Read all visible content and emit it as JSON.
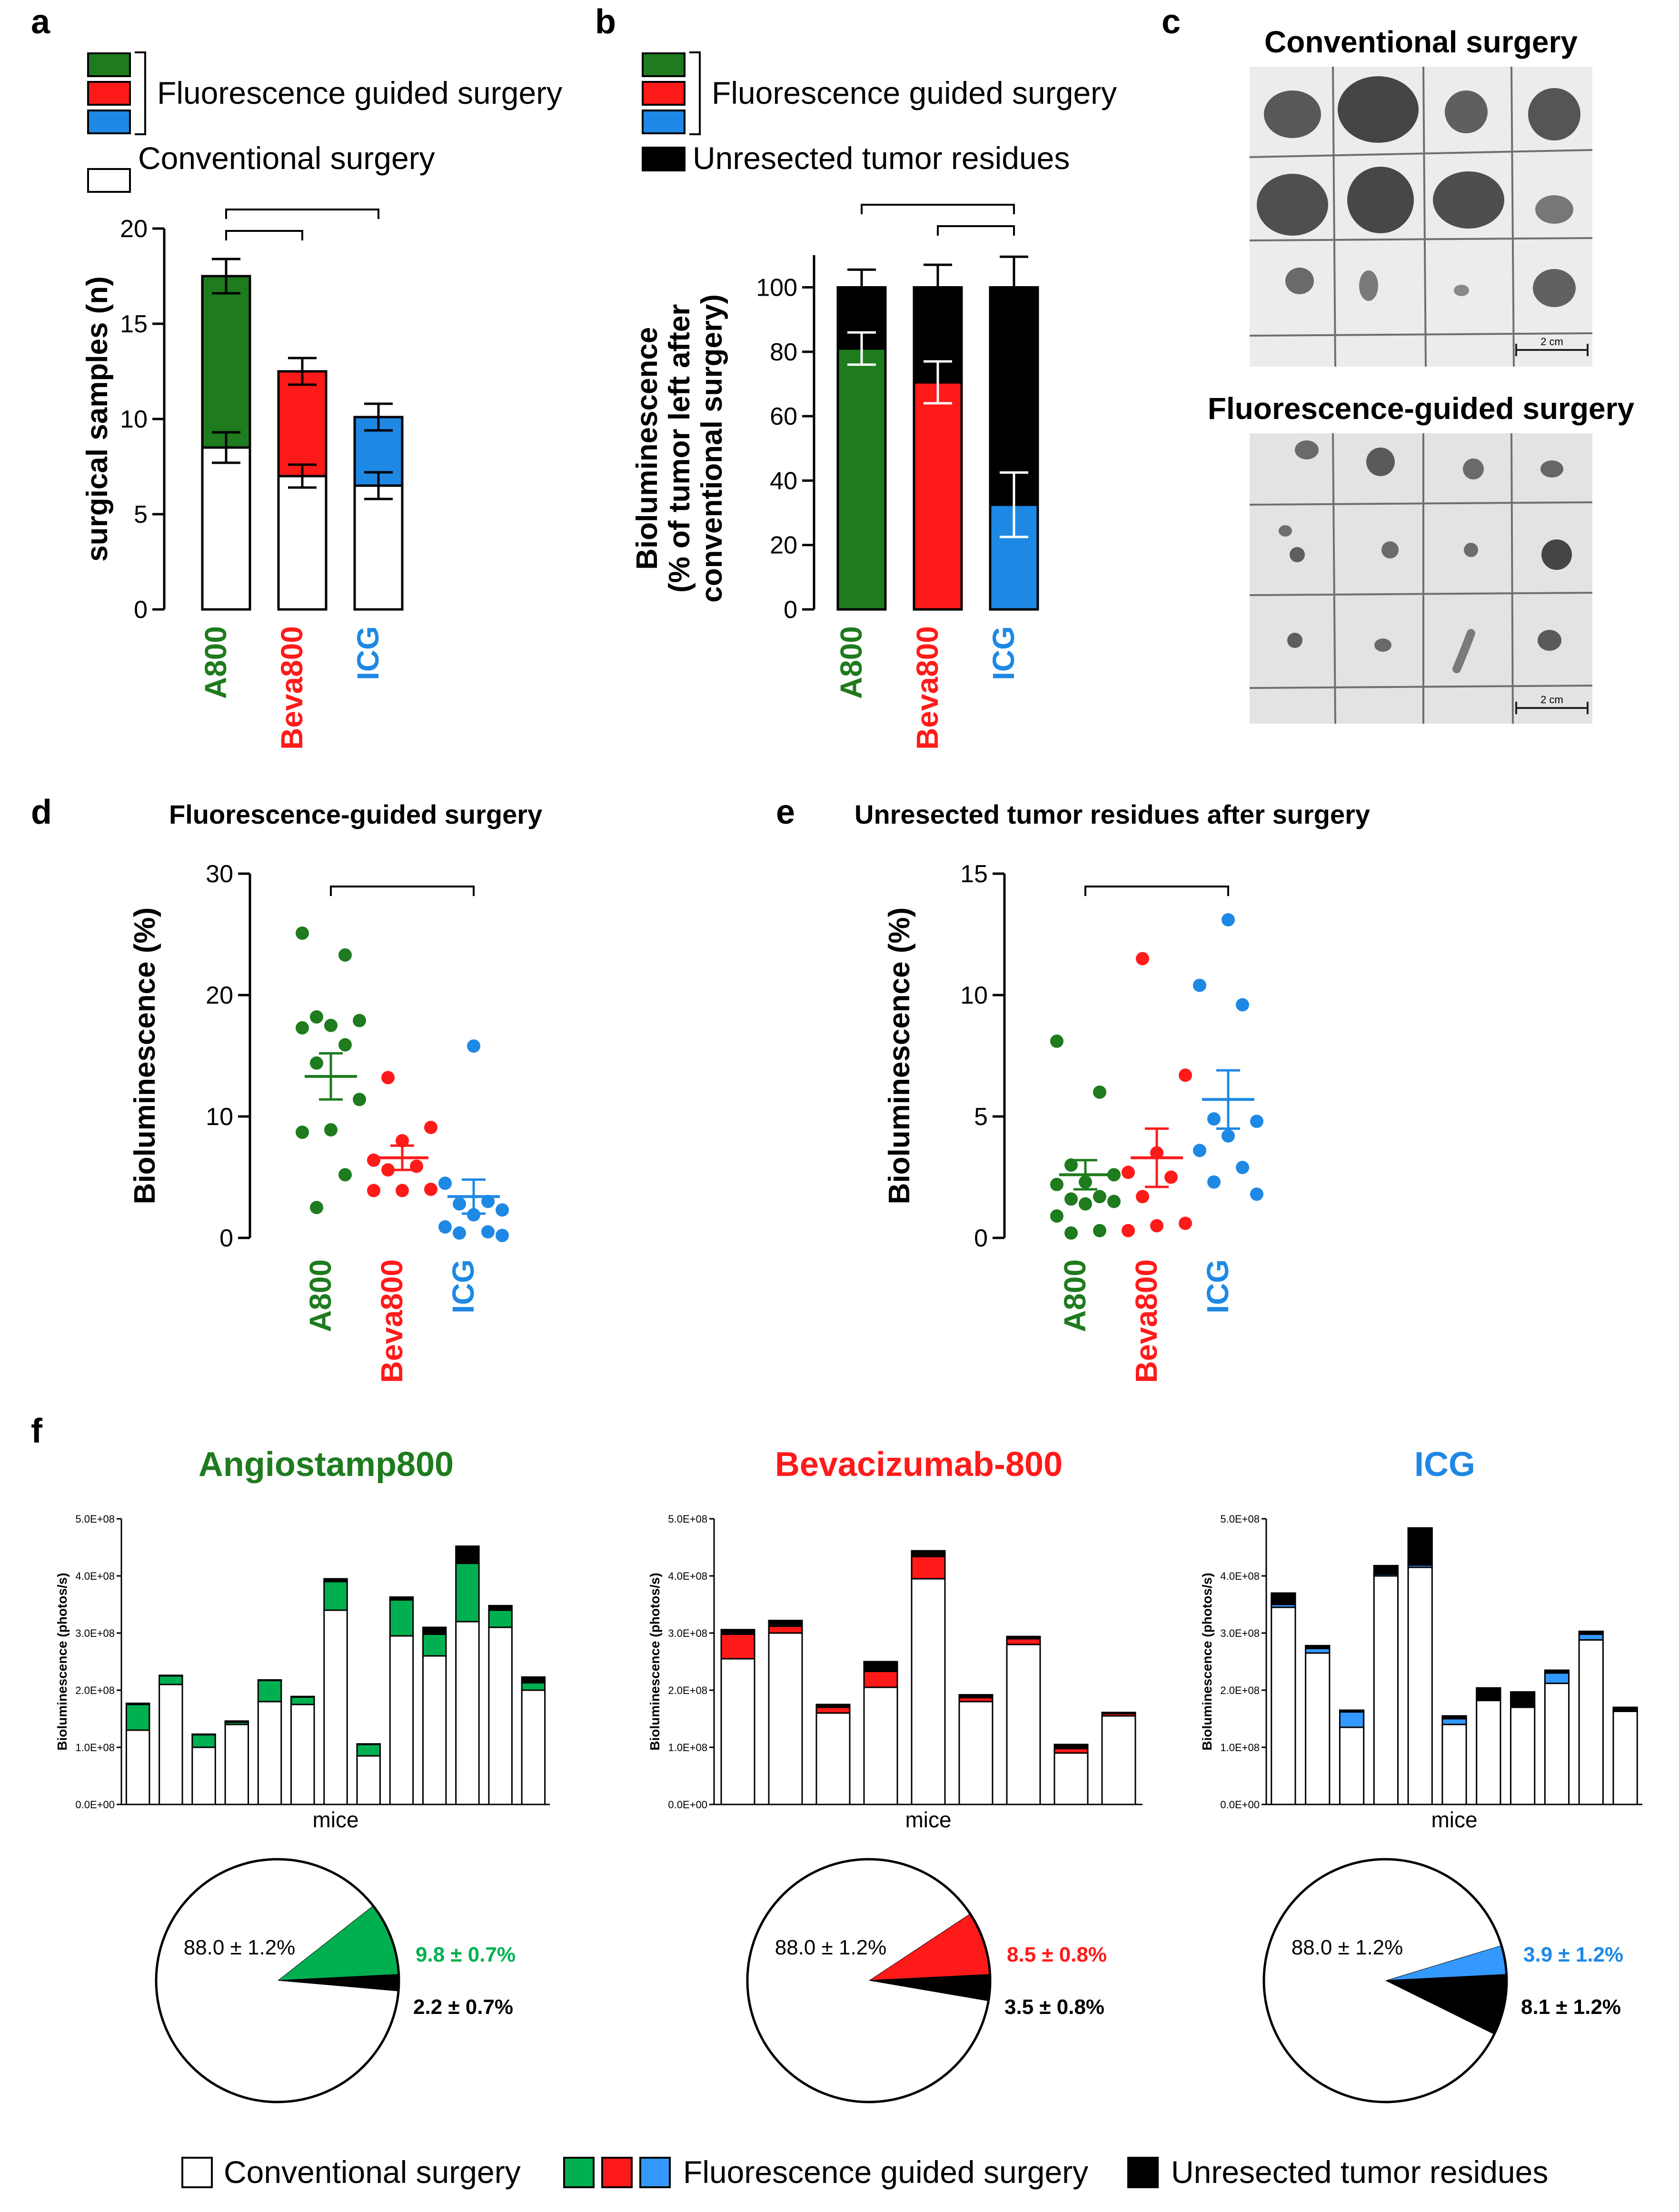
{
  "colors": {
    "a800": "#1e7b1e",
    "beva": "#ff1a1a",
    "icg": "#1e88e5",
    "black": "#000000",
    "white": "#ffffff",
    "pie_green": "#00b050",
    "pie_blue": "#3399ff",
    "pie_green_text": "#00b050",
    "pie_red_text": "#ff1a1a",
    "pie_blue_text": "#1e88e5"
  },
  "panel_letters": {
    "a": "a",
    "b": "b",
    "c": "c",
    "d": "d",
    "e": "e",
    "f": "f"
  },
  "chart_data": [
    {
      "id": "a",
      "type": "bar",
      "stacked": true,
      "legend": {
        "fgs": "Fluorescence guided surgery",
        "conv": "Conventional surgery"
      },
      "categories": [
        "A800",
        "Beva800",
        "ICG"
      ],
      "series": [
        {
          "name": "Conventional surgery",
          "values": [
            8.5,
            7.0,
            6.5
          ],
          "sem": [
            0.8,
            0.6,
            0.7
          ]
        },
        {
          "name": "Fluorescence guided surgery",
          "values": [
            9.0,
            5.5,
            3.6
          ],
          "sem": [
            0.9,
            0.7,
            0.7
          ]
        }
      ],
      "ylabel": "surgical samples (n)",
      "ylim": [
        0,
        20
      ],
      "yticks": [
        "0",
        "5",
        "10",
        "15",
        "20"
      ],
      "significance": [
        {
          "from": 0,
          "to": 1,
          "label": "**"
        },
        {
          "from": 0,
          "to": 2,
          "label": "***"
        }
      ]
    },
    {
      "id": "b",
      "type": "bar",
      "stacked": true,
      "legend": {
        "fgs": "Fluorescence guided surgery",
        "unres": "Unresected tumor residues"
      },
      "categories": [
        "A800",
        "Beva800",
        "ICG"
      ],
      "series": [
        {
          "name": "Fluorescence guided surgery",
          "values": [
            81,
            70.5,
            32.5
          ],
          "sem": [
            5,
            6.5,
            10
          ]
        },
        {
          "name": "Unresected tumor residues",
          "values": [
            19,
            29.5,
            67.5
          ],
          "sem": [
            5.5,
            7,
            9.5
          ]
        }
      ],
      "ylabel_lines": [
        "Bioluminescence",
        "(% of tumor left after",
        "conventional surgery)"
      ],
      "ylim": [
        0,
        115
      ],
      "yticks": [
        "0",
        "20",
        "40",
        "60",
        "80",
        "100"
      ],
      "significance": [
        {
          "from": 1,
          "to": 2,
          "label": "**"
        },
        {
          "from": 0,
          "to": 2,
          "label": "***"
        }
      ]
    },
    {
      "id": "d",
      "type": "scatter",
      "title": "Fluorescence-guided surgery",
      "categories": [
        "A800",
        "Beva800",
        "ICG"
      ],
      "points": [
        [
          25.1,
          23.3,
          18.2,
          17.9,
          17.5,
          17.3,
          15.9,
          14.4,
          11.4,
          8.9,
          8.7,
          5.2,
          2.5
        ],
        [
          13.2,
          9.1,
          8.0,
          6.4,
          5.9,
          5.6,
          4.0,
          3.9,
          3.9
        ],
        [
          15.8,
          4.5,
          3.0,
          2.8,
          2.3,
          1.9,
          0.9,
          0.5,
          0.4,
          0.2
        ]
      ],
      "mean": [
        13.3,
        6.6,
        3.4
      ],
      "sem": [
        1.9,
        1.0,
        1.4
      ],
      "ylabel": "Bioluminescence (%)",
      "ylim": [
        0,
        30
      ],
      "yticks": [
        "0",
        "10",
        "20",
        "30"
      ],
      "significance": [
        {
          "from": 0,
          "to": 2,
          "label": "***"
        }
      ]
    },
    {
      "id": "e",
      "type": "scatter",
      "title": "Unresected tumor residues after surgery",
      "categories": [
        "A800",
        "Beva800",
        "ICG"
      ],
      "points": [
        [
          8.1,
          6.0,
          3.0,
          2.6,
          2.3,
          2.2,
          1.7,
          1.6,
          1.5,
          1.4,
          0.9,
          0.3,
          0.2
        ],
        [
          11.5,
          6.7,
          3.5,
          2.7,
          2.5,
          1.7,
          0.6,
          0.5,
          0.3
        ],
        [
          13.1,
          10.4,
          9.6,
          4.9,
          4.8,
          4.2,
          3.6,
          2.9,
          2.3,
          1.8
        ]
      ],
      "mean": [
        2.6,
        3.3,
        5.7
      ],
      "sem": [
        0.6,
        1.2,
        1.2
      ],
      "ylabel": "Bioluminescence (%)",
      "ylim": [
        0,
        15
      ],
      "yticks": [
        "0",
        "5",
        "10",
        "15"
      ],
      "significance": [
        {
          "from": 0,
          "to": 2,
          "label": "*"
        }
      ]
    },
    {
      "id": "f1",
      "type": "bar",
      "stacked": true,
      "title": "Angiostamp800",
      "xlabel": "mice",
      "ylabel": "Bioluminescence (photos/s)",
      "ylim": [
        0,
        500000000.0
      ],
      "yticks": [
        "0.0E+00",
        "1.0E+08",
        "2.0E+08",
        "3.0E+08",
        "4.0E+08",
        "5.0E+08"
      ],
      "series": [
        {
          "name": "Conventional surgery",
          "values": [
            130000000.0,
            210000000.0,
            100000000.0,
            140000000.0,
            180000000.0,
            175000000.0,
            340000000.0,
            85000000.0,
            295000000.0,
            260000000.0,
            320000000.0,
            310000000.0,
            200000000.0
          ]
        },
        {
          "name": "Fluorescence guided surgery",
          "values": [
            45000000.0,
            15000000.0,
            22000000.0,
            4000000.0,
            37000000.0,
            13000000.0,
            50000000.0,
            20000000.0,
            63000000.0,
            38000000.0,
            102000000.0,
            30000000.0,
            13000000.0
          ]
        },
        {
          "name": "Unresected tumor residues",
          "values": [
            2000000.0,
            1000000.0,
            1000000.0,
            2000000.0,
            1000000.0,
            1000000.0,
            5000000.0,
            1000000.0,
            5000000.0,
            12000000.0,
            30000000.0,
            8000000.0,
            10000000.0
          ]
        }
      ],
      "pie": [
        {
          "name": "Conventional surgery",
          "value": 88.0,
          "label": "88.0 ± 1.2%"
        },
        {
          "name": "Fluorescence guided surgery",
          "value": 9.8,
          "label": "9.8 ± 0.7%"
        },
        {
          "name": "Unresected tumor residues",
          "value": 2.2,
          "label": "2.2 ± 0.7%"
        }
      ]
    },
    {
      "id": "f2",
      "type": "bar",
      "stacked": true,
      "title": "Bevacizumab-800",
      "xlabel": "mice",
      "ylabel": "Bioluminescence (photos/s)",
      "ylim": [
        0,
        500000000.0
      ],
      "yticks": [
        "0.0E+00",
        "1.0E+08",
        "2.0E+08",
        "3.0E+08",
        "4.0E+08",
        "5.0E+08"
      ],
      "series": [
        {
          "name": "Conventional surgery",
          "values": [
            255000000.0,
            300000000.0,
            160000000.0,
            205000000.0,
            395000000.0,
            180000000.0,
            280000000.0,
            90000000.0,
            155000000.0
          ]
        },
        {
          "name": "Fluorescence guided surgery",
          "values": [
            43000000.0,
            12000000.0,
            10000000.0,
            28000000.0,
            39000000.0,
            7000000.0,
            10000000.0,
            8000000.0,
            4000000.0
          ]
        },
        {
          "name": "Unresected tumor residues",
          "values": [
            8000000.0,
            10000000.0,
            5000000.0,
            17000000.0,
            10000000.0,
            5000000.0,
            4000000.0,
            7000000.0,
            2000000.0
          ]
        }
      ],
      "pie": [
        {
          "name": "Conventional surgery",
          "value": 88.0,
          "label": "88.0 ± 1.2%"
        },
        {
          "name": "Fluorescence guided surgery",
          "value": 8.5,
          "label": "8.5 ± 0.8%"
        },
        {
          "name": "Unresected tumor residues",
          "value": 3.5,
          "label": "3.5 ± 0.8%"
        }
      ]
    },
    {
      "id": "f3",
      "type": "bar",
      "stacked": true,
      "title": "ICG",
      "xlabel": "mice",
      "ylabel": "Bioluminescence (photos/s)",
      "ylim": [
        0,
        500000000.0
      ],
      "yticks": [
        "0.0E+00",
        "1.0E+08",
        "2.0E+08",
        "3.0E+08",
        "4.0E+08",
        "5.0E+08"
      ],
      "series": [
        {
          "name": "Conventional surgery",
          "values": [
            345000000.0,
            265000000.0,
            135000000.0,
            400000000.0,
            415000000.0,
            140000000.0,
            182000000.0,
            170000000.0,
            212000000.0,
            288000000.0,
            163000000.0
          ]
        },
        {
          "name": "Fluorescence guided surgery",
          "values": [
            5000000.0,
            8000000.0,
            27000000.0,
            3000000.0,
            4000000.0,
            10000000.0,
            2000000.0,
            2000000.0,
            18000000.0,
            10000000.0,
            2000000.0
          ]
        },
        {
          "name": "Unresected tumor residues",
          "values": [
            20000000.0,
            5000000.0,
            3000000.0,
            15000000.0,
            65000000.0,
            5000000.0,
            20000000.0,
            25000000.0,
            5000000.0,
            5000000.0,
            5000000.0
          ]
        }
      ],
      "pie": [
        {
          "name": "Conventional surgery",
          "value": 88.0,
          "label": "88.0 ± 1.2%"
        },
        {
          "name": "Fluorescence guided surgery",
          "value": 3.9,
          "label": "3.9 ± 1.2%"
        },
        {
          "name": "Unresected tumor residues",
          "value": 8.1,
          "label": "8.1 ± 1.2%"
        }
      ]
    }
  ],
  "panel_c": {
    "top_title": "Conventional surgery",
    "bottom_title": "Fluorescence-guided surgery",
    "scale_label": "2 cm"
  },
  "bottom_legend": {
    "conv": "Conventional surgery",
    "fgs": "Fluorescence guided surgery",
    "unres": "Unresected tumor residues"
  }
}
